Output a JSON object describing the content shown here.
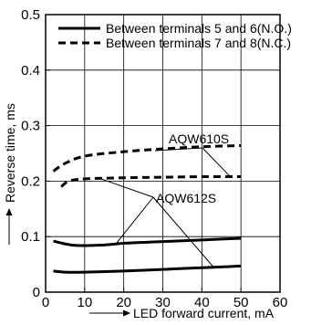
{
  "chart_data": {
    "type": "line",
    "xlabel": "LED forward current, mA",
    "ylabel": "Reverse time, ms",
    "xlim": [
      0,
      60
    ],
    "ylim": [
      0,
      0.5
    ],
    "xticks": [
      0,
      10,
      20,
      30,
      40,
      50,
      60
    ],
    "yticks": [
      0,
      0.1,
      0.2,
      0.3,
      0.4,
      0.5
    ],
    "x_tick_labels": [
      "0",
      "10",
      "20",
      "30",
      "40",
      "50",
      "60"
    ],
    "y_tick_labels": [
      "0",
      "0.1",
      "0.2",
      "0.3",
      "0.4",
      "0.5"
    ],
    "grid": true,
    "legend_position": "top",
    "legend": [
      {
        "label": "Between terminals 5 and 6(N.O.)",
        "style": "solid"
      },
      {
        "label": "Between terminals 7 and 8(N.C.)",
        "style": "dashed"
      }
    ],
    "series": [
      {
        "style": "dashed",
        "x": [
          2,
          5,
          10,
          20,
          30,
          40,
          50
        ],
        "y": [
          0.218,
          0.232,
          0.245,
          0.253,
          0.258,
          0.262,
          0.264
        ]
      },
      {
        "style": "dashed",
        "x": [
          4,
          6,
          10,
          20,
          30,
          40,
          50
        ],
        "y": [
          0.19,
          0.2,
          0.204,
          0.206,
          0.207,
          0.208,
          0.208
        ]
      },
      {
        "style": "solid",
        "x": [
          2,
          5,
          8,
          15,
          20,
          30,
          40,
          50
        ],
        "y": [
          0.092,
          0.087,
          0.084,
          0.085,
          0.088,
          0.091,
          0.094,
          0.097
        ]
      },
      {
        "style": "solid",
        "x": [
          2,
          5,
          10,
          20,
          30,
          40,
          50
        ],
        "y": [
          0.038,
          0.036,
          0.036,
          0.038,
          0.041,
          0.044,
          0.047
        ]
      }
    ],
    "annotations": [
      {
        "text": "AQW610S",
        "anchor": [
          38,
          0.305
        ],
        "targets": [
          [
            28,
            0.255
          ],
          [
            47,
            0.21
          ]
        ]
      },
      {
        "text": "AQW612S",
        "anchor": [
          21,
          0.18
        ],
        "targets": [
          [
            13,
            0.207
          ],
          [
            18,
            0.087
          ],
          [
            43,
            0.045
          ]
        ]
      }
    ]
  }
}
